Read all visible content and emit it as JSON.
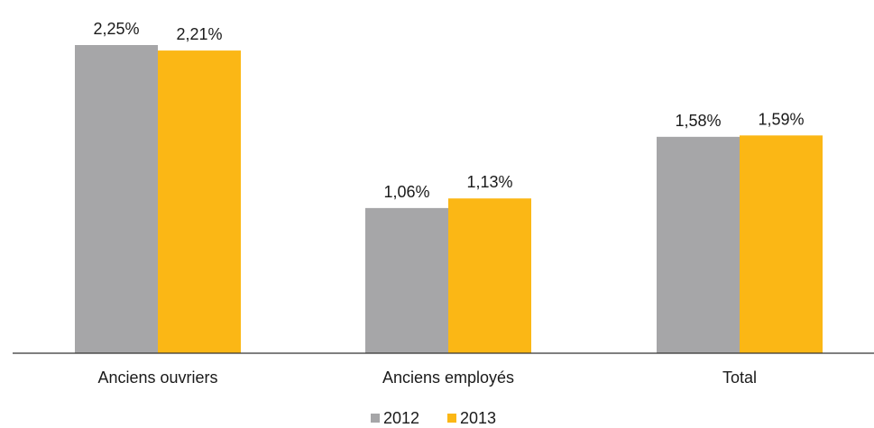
{
  "chart_data": {
    "type": "bar",
    "categories": [
      "Anciens ouvriers",
      "Anciens employés",
      "Total"
    ],
    "series": [
      {
        "name": "2012",
        "values": [
          2.25,
          1.06,
          1.58
        ],
        "labels": [
          "2,25%",
          "1,06%",
          "1,58%"
        ],
        "color": "#a6a6a8"
      },
      {
        "name": "2013",
        "values": [
          2.21,
          1.13,
          1.59
        ],
        "labels": [
          "2,21%",
          "1,13%",
          "1,59%"
        ],
        "color": "#fbb715"
      }
    ],
    "ylim": [
      0,
      2.4
    ],
    "grid": false,
    "legend_position": "bottom"
  }
}
